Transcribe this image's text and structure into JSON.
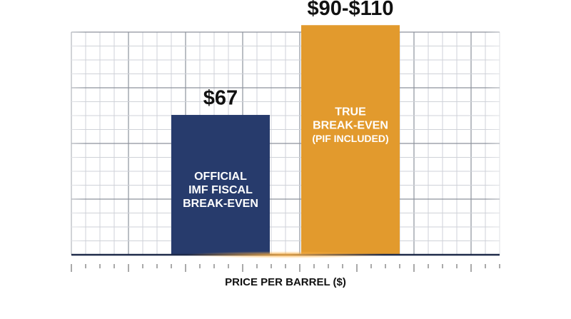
{
  "chart_data": {
    "type": "bar",
    "categories": [
      [
        "OFFICIAL",
        "IMF FISCAL",
        "BREAK-EVEN"
      ],
      [
        "TRUE",
        "BREAK-EVEN",
        "(PIF INCLUDED)"
      ]
    ],
    "values": [
      67,
      110
    ],
    "range_low": [
      67,
      90
    ],
    "value_labels": [
      "$67",
      "$90-$110"
    ],
    "colors": [
      "#273b6c",
      "#e29a2d"
    ],
    "x_label": "PRICE PER BARREL ($)",
    "ylim": [
      0,
      120
    ]
  }
}
